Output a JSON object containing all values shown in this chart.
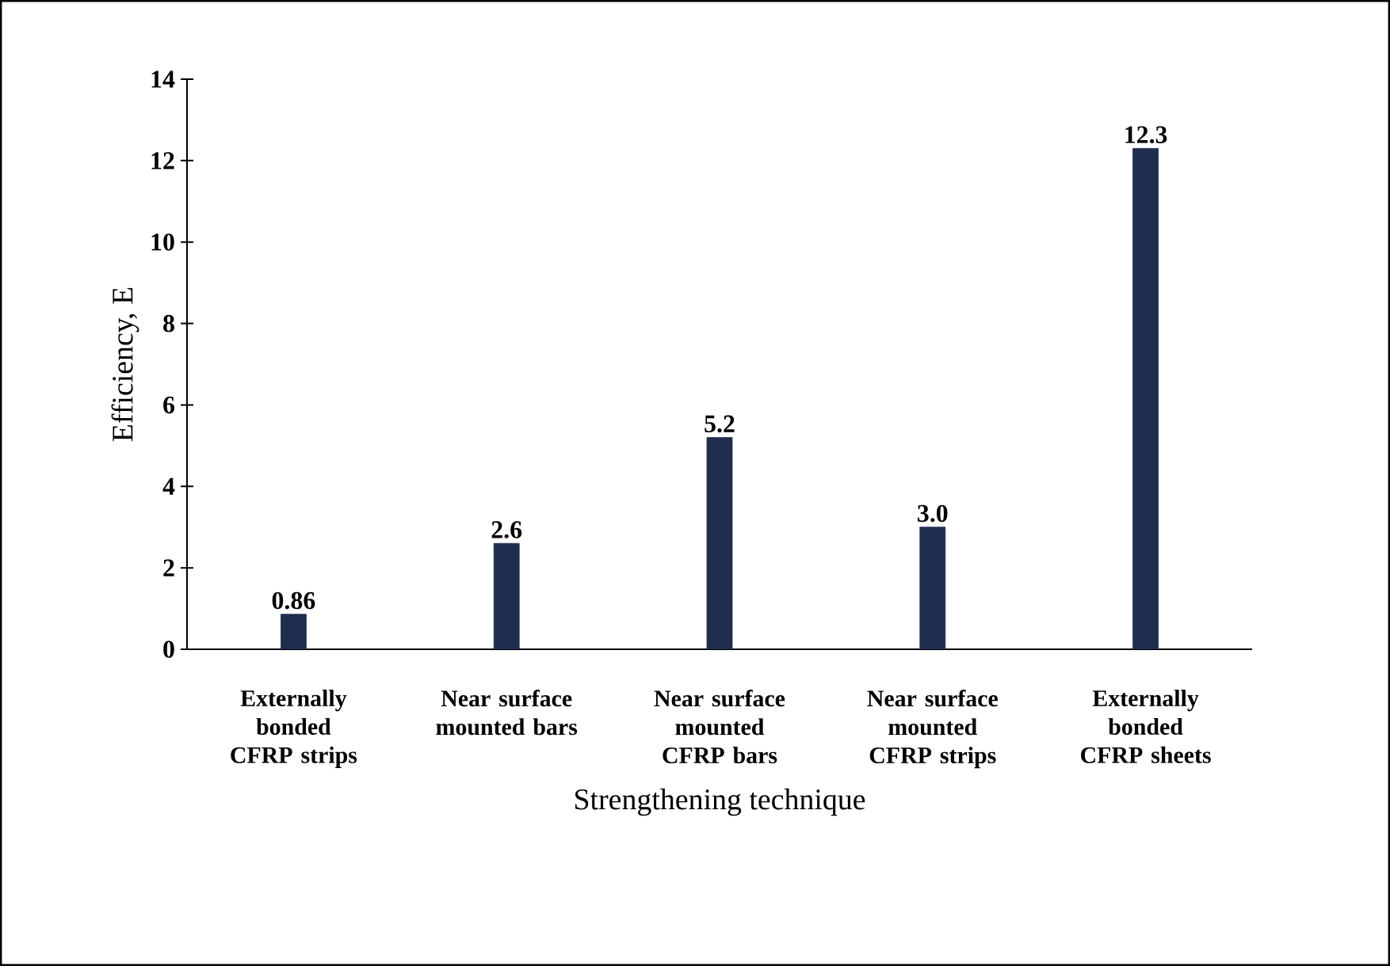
{
  "chart_data": {
    "type": "bar",
    "xlabel": "Strengthening technique",
    "ylabel": "Efficiency, E",
    "categories": [
      "Externally bonded CFRP strips",
      "Near surface mounted bars",
      "Near surface mounted CFRP bars",
      "Near surface mounted CFRP strips",
      "Externally bonded CFRP sheets"
    ],
    "values": [
      0.86,
      2.6,
      5.2,
      3.0,
      12.3
    ],
    "value_labels": [
      "0.86",
      "2.6",
      "5.2",
      "3.0",
      "12.3"
    ],
    "color": "#1f2d4f",
    "ylim": [
      0,
      14
    ],
    "yticks": [
      0,
      2,
      4,
      6,
      8,
      10,
      12,
      14
    ]
  }
}
